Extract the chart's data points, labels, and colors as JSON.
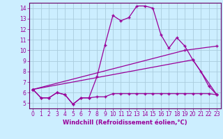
{
  "xlabel": "Windchill (Refroidissement éolien,°C)",
  "background_color": "#cceeff",
  "grid_color": "#aaccdd",
  "line_color": "#990099",
  "spine_color": "#660066",
  "xlim": [
    -0.5,
    23.5
  ],
  "ylim": [
    4.5,
    14.5
  ],
  "xticks": [
    0,
    1,
    2,
    3,
    4,
    5,
    6,
    7,
    8,
    9,
    10,
    11,
    12,
    13,
    14,
    15,
    16,
    17,
    18,
    19,
    20,
    21,
    22,
    23
  ],
  "yticks": [
    5,
    6,
    7,
    8,
    9,
    10,
    11,
    12,
    13,
    14
  ],
  "series1_x": [
    0,
    1,
    2,
    3,
    4,
    5,
    6,
    7,
    8,
    9,
    10,
    11,
    12,
    13,
    14,
    15,
    16,
    17,
    18,
    19,
    20,
    21,
    22,
    23
  ],
  "series1_y": [
    6.3,
    5.5,
    5.5,
    6.0,
    5.8,
    4.9,
    5.5,
    5.5,
    5.6,
    5.6,
    5.9,
    5.9,
    5.9,
    5.9,
    5.9,
    5.9,
    5.9,
    5.9,
    5.9,
    5.9,
    5.9,
    5.9,
    5.9,
    5.8
  ],
  "series2_x": [
    0,
    1,
    2,
    3,
    4,
    5,
    6,
    7,
    8,
    9,
    10,
    11,
    12,
    13,
    14,
    15,
    16,
    17,
    18,
    19,
    20,
    21,
    22,
    23
  ],
  "series2_y": [
    6.3,
    5.5,
    5.5,
    6.0,
    5.8,
    4.9,
    5.5,
    5.5,
    7.5,
    10.5,
    13.3,
    12.8,
    13.1,
    14.2,
    14.2,
    14.0,
    11.5,
    10.2,
    11.2,
    10.4,
    9.1,
    8.0,
    6.6,
    5.8
  ],
  "series3_x": [
    0,
    19,
    23
  ],
  "series3_y": [
    6.3,
    10.0,
    10.4
  ],
  "series4_x": [
    0,
    20,
    23
  ],
  "series4_y": [
    6.3,
    9.1,
    5.8
  ]
}
